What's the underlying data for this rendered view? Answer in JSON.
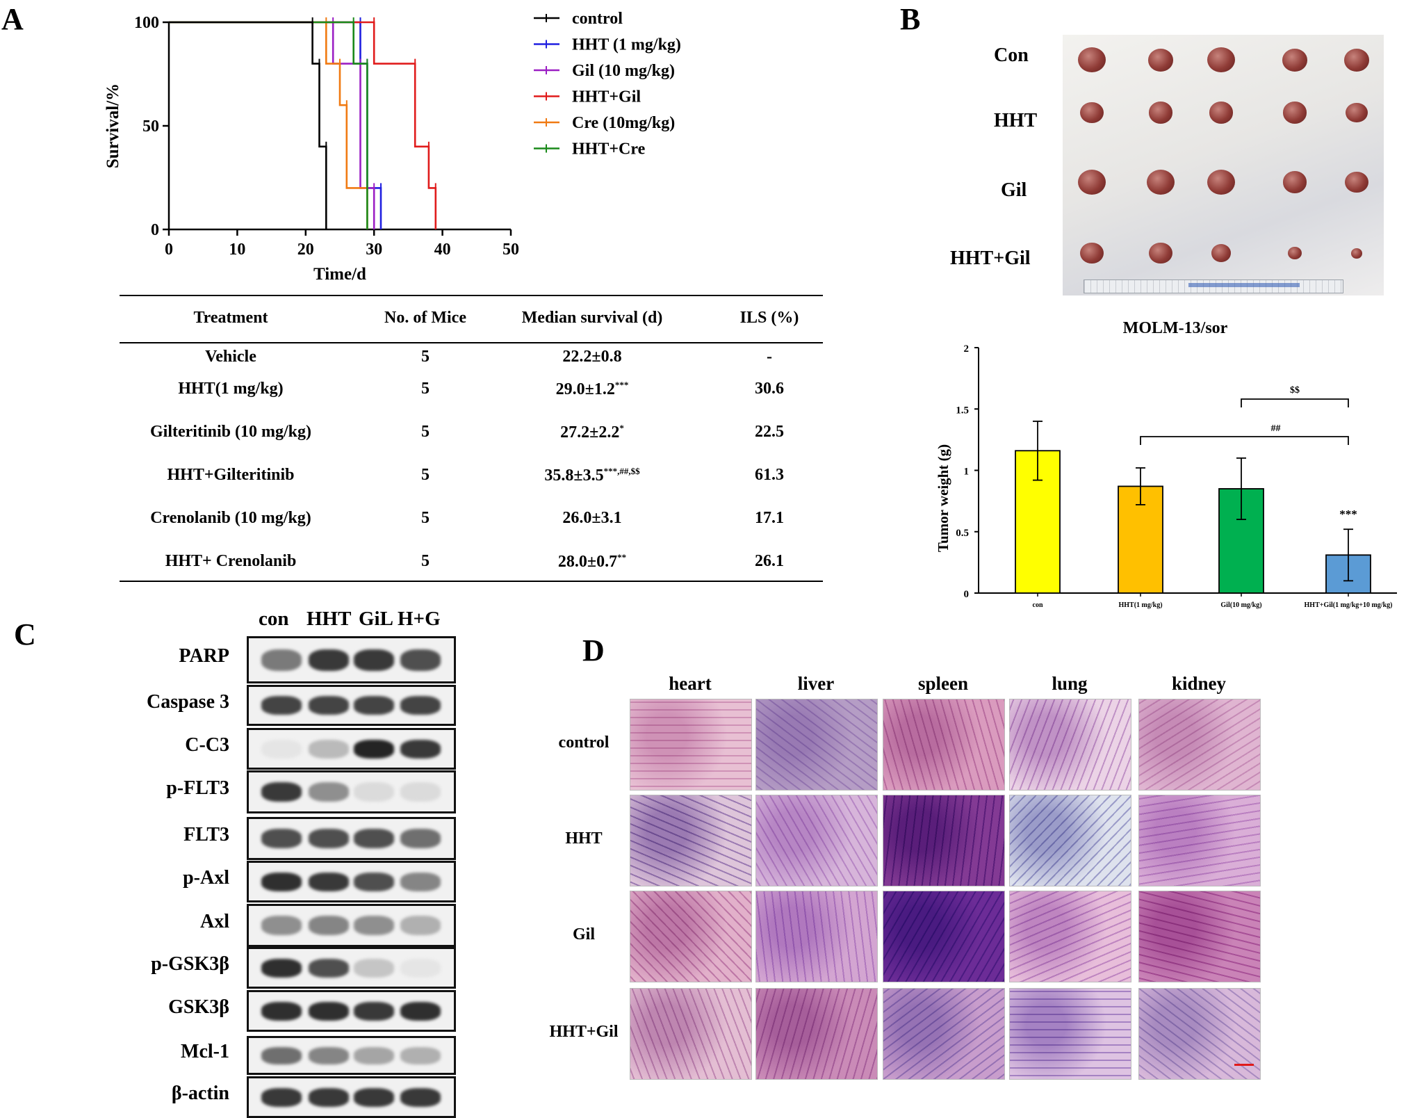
{
  "panel_labels": {
    "a": "A",
    "b": "B",
    "c": "C",
    "d": "D"
  },
  "colors": {
    "control": "#000000",
    "hht": "#1f1fe0",
    "gil": "#9b1fc4",
    "hht_gil": "#e01b1b",
    "cre": "#f07a12",
    "hht_cre": "#1a8a1a",
    "bar_con": "#ffff00",
    "bar_hht": "#ffc000",
    "bar_gil": "#00b050",
    "bar_combo": "#5b9bd5"
  },
  "chart_data": [
    {
      "type": "line",
      "subtype": "kaplan-meier step",
      "xlabel": "Time/d",
      "ylabel": "Survival/%",
      "xlim": [
        0,
        50
      ],
      "ylim": [
        0,
        100
      ],
      "xticks": [
        "0",
        "10",
        "20",
        "30",
        "40",
        "50"
      ],
      "yticks": [
        "0",
        "50",
        "100"
      ],
      "legend_position": "right",
      "series": [
        {
          "name": "control",
          "key": "control",
          "x": [
            0,
            21,
            21,
            22,
            22,
            23,
            23
          ],
          "y": [
            100,
            100,
            80,
            80,
            40,
            40,
            0
          ]
        },
        {
          "name": "HHT (1 mg/kg)",
          "key": "hht",
          "x": [
            0,
            28,
            28,
            29,
            29,
            31,
            31
          ],
          "y": [
            100,
            100,
            80,
            80,
            20,
            20,
            0
          ]
        },
        {
          "name": "Gil (10 mg/kg)",
          "key": "gil",
          "x": [
            0,
            24,
            24,
            28,
            28,
            30,
            30
          ],
          "y": [
            100,
            100,
            80,
            80,
            20,
            20,
            0
          ]
        },
        {
          "name": "HHT+Gil",
          "key": "hht_gil",
          "x": [
            0,
            30,
            30,
            36,
            36,
            38,
            38,
            39,
            39
          ],
          "y": [
            100,
            100,
            80,
            80,
            40,
            40,
            20,
            20,
            0
          ]
        },
        {
          "name": "Cre (10mg/kg)",
          "key": "cre",
          "x": [
            0,
            23,
            23,
            25,
            25,
            26,
            26,
            29,
            29
          ],
          "y": [
            100,
            100,
            80,
            80,
            60,
            60,
            20,
            20,
            0
          ]
        },
        {
          "name": "HHT+Cre",
          "key": "hht_cre",
          "x": [
            0,
            27,
            27,
            29,
            29
          ],
          "y": [
            100,
            100,
            80,
            80,
            0
          ]
        }
      ]
    },
    {
      "type": "bar",
      "title": "MOLM-13/sor",
      "xlabel": "",
      "ylabel": "Tumor weight (g)",
      "ylim": [
        0,
        2
      ],
      "yticks": [
        "0",
        "0.5",
        "1",
        "1.5",
        "2"
      ],
      "categories": [
        "con",
        "HHT(1 mg/kg)",
        "Gil(10 mg/kg)",
        "HHT+Gil(1 mg/kg+10 mg/kg)"
      ],
      "values": [
        1.16,
        0.87,
        0.85,
        0.31
      ],
      "errors": [
        0.24,
        0.15,
        0.25,
        0.21
      ],
      "significance": {
        "combo": "***",
        "hht_vs_combo": "##",
        "gil_vs_combo": "$$"
      }
    },
    {
      "type": "table",
      "columns": [
        "Treatment",
        "No. of Mice",
        "Median survival (d)",
        "ILS (%)"
      ],
      "rows": [
        {
          "treatment": "Vehicle",
          "mice": "5",
          "median": "22.2±0.8",
          "sup": "",
          "ils": "-"
        },
        {
          "treatment": "HHT(1 mg/kg)",
          "mice": "5",
          "median": "29.0±1.2",
          "sup": "***",
          "ils": "30.6"
        },
        {
          "treatment": "Gilteritinib (10 mg/kg)",
          "mice": "5",
          "median": "27.2±2.2",
          "sup": "*",
          "ils": "22.5"
        },
        {
          "treatment": "HHT+Gilteritinib",
          "mice": "5",
          "median": "35.8±3.5",
          "sup": "***,##,$$",
          "ils": "61.3"
        },
        {
          "treatment": "Crenolanib (10 mg/kg)",
          "mice": "5",
          "median": "26.0±3.1",
          "sup": "",
          "ils": "17.1"
        },
        {
          "treatment": "HHT+ Crenolanib",
          "mice": "5",
          "median": "28.0±0.7",
          "sup": "**",
          "ils": "26.1"
        }
      ]
    }
  ],
  "panel_b": {
    "row_labels": [
      "Con",
      "HHT",
      "Gil",
      "HHT+Gil"
    ],
    "tumor_sizes": [
      [
        1.0,
        0.9,
        1.0,
        0.9,
        0.9
      ],
      [
        0.8,
        0.85,
        0.85,
        0.85,
        0.75
      ],
      [
        1.0,
        1.0,
        1.0,
        0.85,
        0.8
      ],
      [
        0.8,
        0.8,
        0.65,
        0.4,
        0.3
      ]
    ]
  },
  "panel_c": {
    "lanes": [
      "con",
      "HHT",
      "GiL",
      "H+G"
    ],
    "blots": [
      {
        "label": "PARP",
        "intensity": [
          0.55,
          0.85,
          0.85,
          0.75
        ]
      },
      {
        "label": "Caspase 3",
        "intensity": [
          0.8,
          0.8,
          0.8,
          0.8
        ]
      },
      {
        "label": "C-C3",
        "intensity": [
          0.05,
          0.25,
          0.95,
          0.85
        ]
      },
      {
        "label": "p-FLT3",
        "intensity": [
          0.85,
          0.45,
          0.1,
          0.1
        ]
      },
      {
        "label": "FLT3",
        "intensity": [
          0.75,
          0.75,
          0.75,
          0.6
        ]
      },
      {
        "label": "p-Axl",
        "intensity": [
          0.9,
          0.85,
          0.75,
          0.5
        ]
      },
      {
        "label": "Axl",
        "intensity": [
          0.45,
          0.5,
          0.45,
          0.3
        ]
      },
      {
        "label": "p-GSK3β",
        "intensity": [
          0.9,
          0.75,
          0.2,
          0.05
        ]
      },
      {
        "label": "GSK3β",
        "intensity": [
          0.9,
          0.9,
          0.85,
          0.9
        ]
      },
      {
        "label": "Mcl-1",
        "intensity": [
          0.6,
          0.5,
          0.35,
          0.3
        ]
      },
      {
        "label": "β-actin",
        "intensity": [
          0.85,
          0.85,
          0.85,
          0.85
        ]
      }
    ]
  },
  "panel_d": {
    "columns": [
      "heart",
      "liver",
      "spleen",
      "lung",
      "kidney"
    ],
    "rows": [
      "control",
      "HHT",
      "Gil",
      "HHT+Gil"
    ]
  }
}
